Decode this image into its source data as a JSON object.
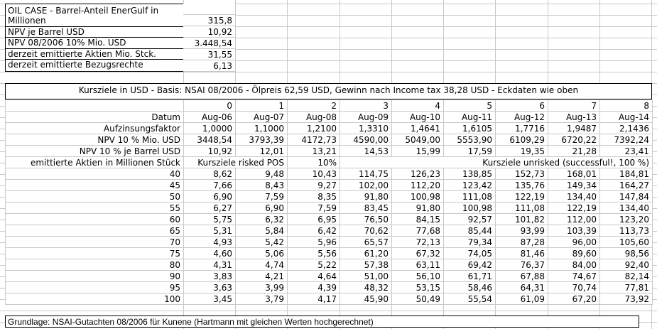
{
  "colors": {
    "gridline": "#c9c9c9",
    "border": "#000000",
    "background": "#ffffff",
    "text": "#000000"
  },
  "top_block": {
    "rows": [
      {
        "label": "OIL CASE - Barrel-Anteil EnerGulf in Millionen",
        "value": "315,8"
      },
      {
        "label": "NPV je Barrel USD",
        "value": "10,92"
      },
      {
        "label": "NPV 08/2006 10% Mio. USD",
        "value": "3.448,54"
      },
      {
        "label": "derzeit emittierte Aktien Mio. Stck.",
        "value": "31,55"
      },
      {
        "label": "derzeit emittierte Bezugsrechte",
        "value": "6,13"
      }
    ]
  },
  "table": {
    "title": "Kursziele in USD - Basis: NSAI 08/2006 - Ölpreis 62,59 USD, Gewinn nach Income tax 38,28 USD - Eckdaten wie oben",
    "col_indices": [
      "0",
      "1",
      "2",
      "3",
      "4",
      "5",
      "6",
      "7",
      "8"
    ],
    "datum_label": "Datum",
    "dates": [
      "Aug-06",
      "Aug-07",
      "Aug-08",
      "Aug-09",
      "Aug-10",
      "Aug-11",
      "Aug-12",
      "Aug-13",
      "Aug-14"
    ],
    "meta_rows": [
      {
        "label": "Aufzinsungsfaktor",
        "values": [
          "1,0000",
          "1,1000",
          "1,2100",
          "1,3310",
          "1,4641",
          "1,6105",
          "1,7716",
          "1,9487",
          "2,1436"
        ]
      },
      {
        "label": "NPV 10 % Mio. USD",
        "values": [
          "3448,54",
          "3793,39",
          "4172,73",
          "4590,00",
          "5049,00",
          "5553,90",
          "6109,29",
          "6720,22",
          "7392,24"
        ]
      },
      {
        "label": "NPV 10 % je Barrel USD",
        "values": [
          "10,92",
          "12,01",
          "13,21",
          "14,53",
          "15,99",
          "17,59",
          "19,35",
          "21,28",
          "23,41"
        ]
      }
    ],
    "band": {
      "left_label": "emittierte Aktien in Millionen Stück",
      "risked_label": "Kursziele risked POS",
      "risked_pct": "10%",
      "unrisked_label": "Kursziele unrisked (successful!, 100 %)"
    },
    "matrix": {
      "row_labels": [
        "40",
        "45",
        "50",
        "55",
        "60",
        "65",
        "70",
        "75",
        "80",
        "90",
        "95",
        "100"
      ],
      "values": [
        [
          "8,62",
          "9,48",
          "10,43",
          "114,75",
          "126,23",
          "138,85",
          "152,73",
          "168,01",
          "184,81"
        ],
        [
          "7,66",
          "8,43",
          "9,27",
          "102,00",
          "112,20",
          "123,42",
          "135,76",
          "149,34",
          "164,27"
        ],
        [
          "6,90",
          "7,59",
          "8,35",
          "91,80",
          "100,98",
          "111,08",
          "122,19",
          "134,40",
          "147,84"
        ],
        [
          "6,27",
          "6,90",
          "7,59",
          "83,45",
          "91,80",
          "100,98",
          "111,08",
          "122,19",
          "134,40"
        ],
        [
          "5,75",
          "6,32",
          "6,95",
          "76,50",
          "84,15",
          "92,57",
          "101,82",
          "112,00",
          "123,20"
        ],
        [
          "5,31",
          "5,84",
          "6,42",
          "70,62",
          "77,68",
          "85,44",
          "93,99",
          "103,39",
          "113,73"
        ],
        [
          "4,93",
          "5,42",
          "5,96",
          "65,57",
          "72,13",
          "79,34",
          "87,28",
          "96,00",
          "105,60"
        ],
        [
          "4,60",
          "5,06",
          "5,56",
          "61,20",
          "67,32",
          "74,05",
          "81,46",
          "89,60",
          "98,56"
        ],
        [
          "4,31",
          "4,74",
          "5,22",
          "57,38",
          "63,11",
          "69,42",
          "76,37",
          "84,00",
          "92,40"
        ],
        [
          "3,83",
          "4,21",
          "4,64",
          "51,00",
          "56,10",
          "61,71",
          "67,88",
          "74,67",
          "82,14"
        ],
        [
          "3,63",
          "3,99",
          "4,39",
          "48,32",
          "53,15",
          "58,46",
          "64,31",
          "70,74",
          "77,81"
        ],
        [
          "3,45",
          "3,79",
          "4,17",
          "45,90",
          "50,49",
          "55,54",
          "61,09",
          "67,20",
          "73,92"
        ]
      ]
    }
  },
  "footer": {
    "note": "Grundlage: NSAI-Gutachten 08/2006 für Kunene (Hartmann mit gleichen Werten hochgerechnet)"
  }
}
